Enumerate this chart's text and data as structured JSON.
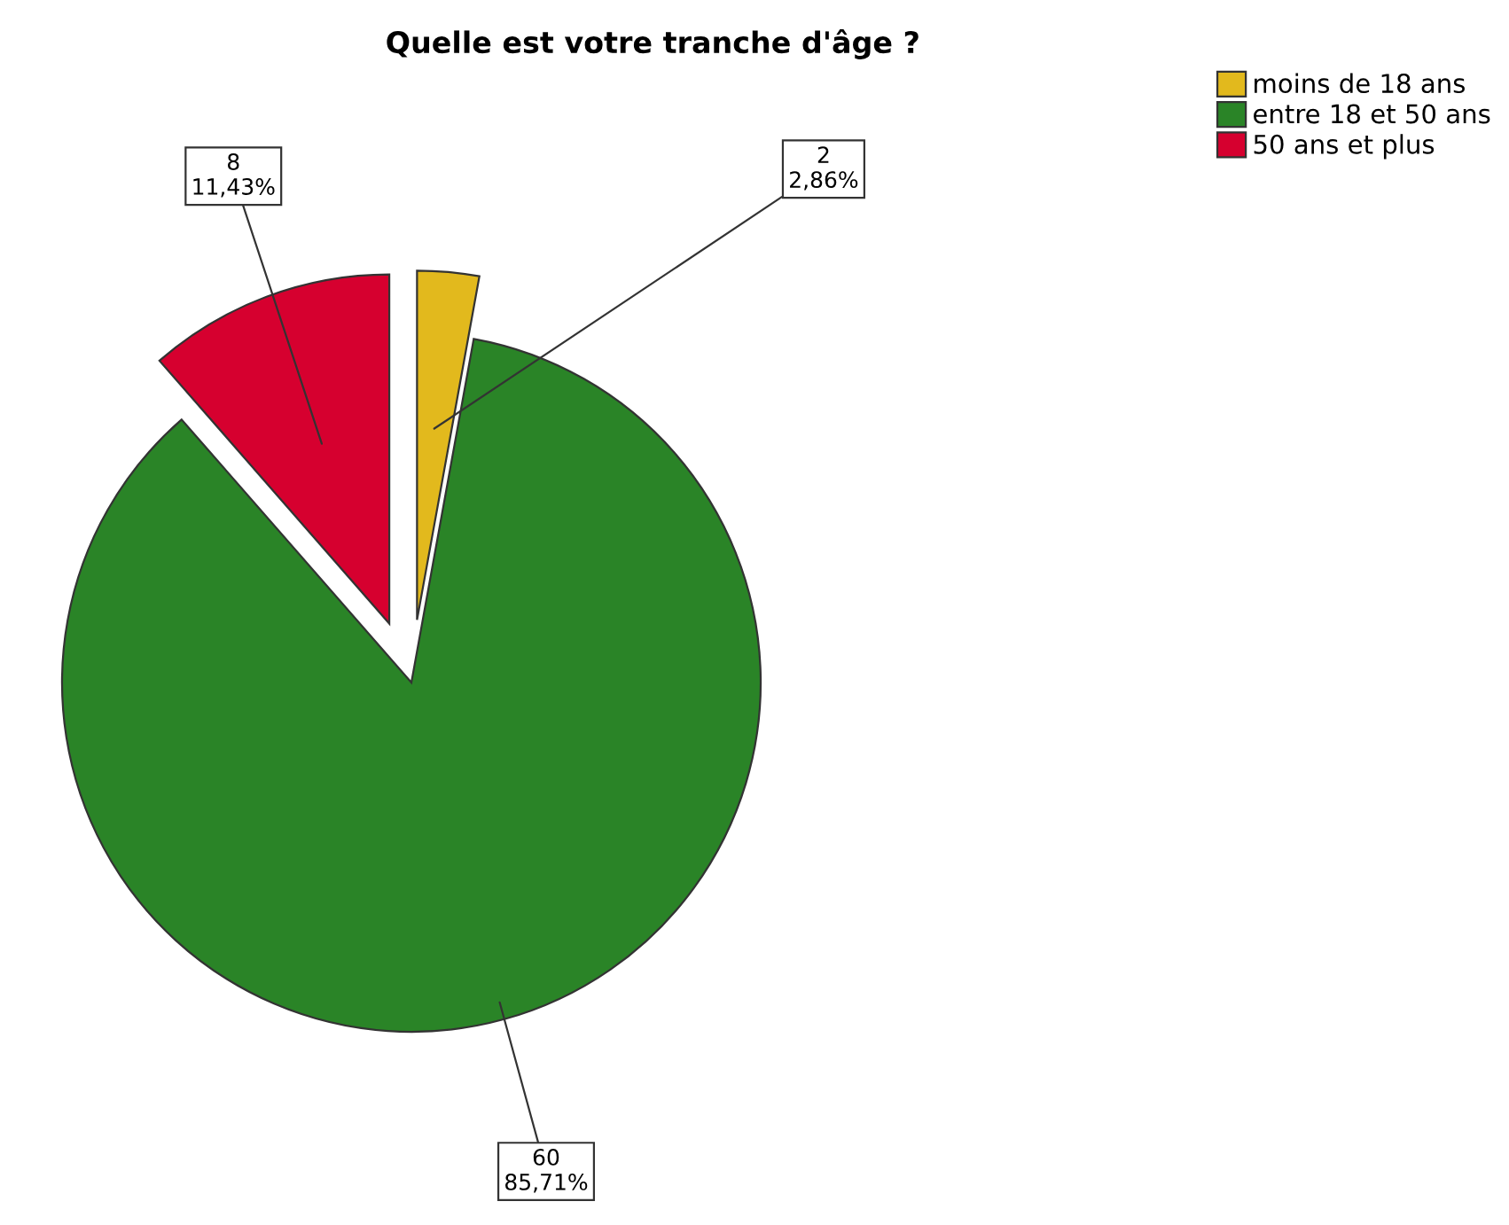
{
  "chart_data": {
    "type": "pie",
    "title": "Quelle est votre tranche d'âge ?",
    "categories": [
      "moins de 18 ans",
      "entre 18 et 50 ans",
      "50 ans et plus"
    ],
    "values": [
      2,
      60,
      8
    ],
    "colors": [
      "#e2b91d",
      "#2a8427",
      "#d6002f"
    ],
    "value_labels": [
      "2\n2,86%",
      "60\n85,71%",
      "8\n11,43%"
    ],
    "legend": "top right"
  }
}
